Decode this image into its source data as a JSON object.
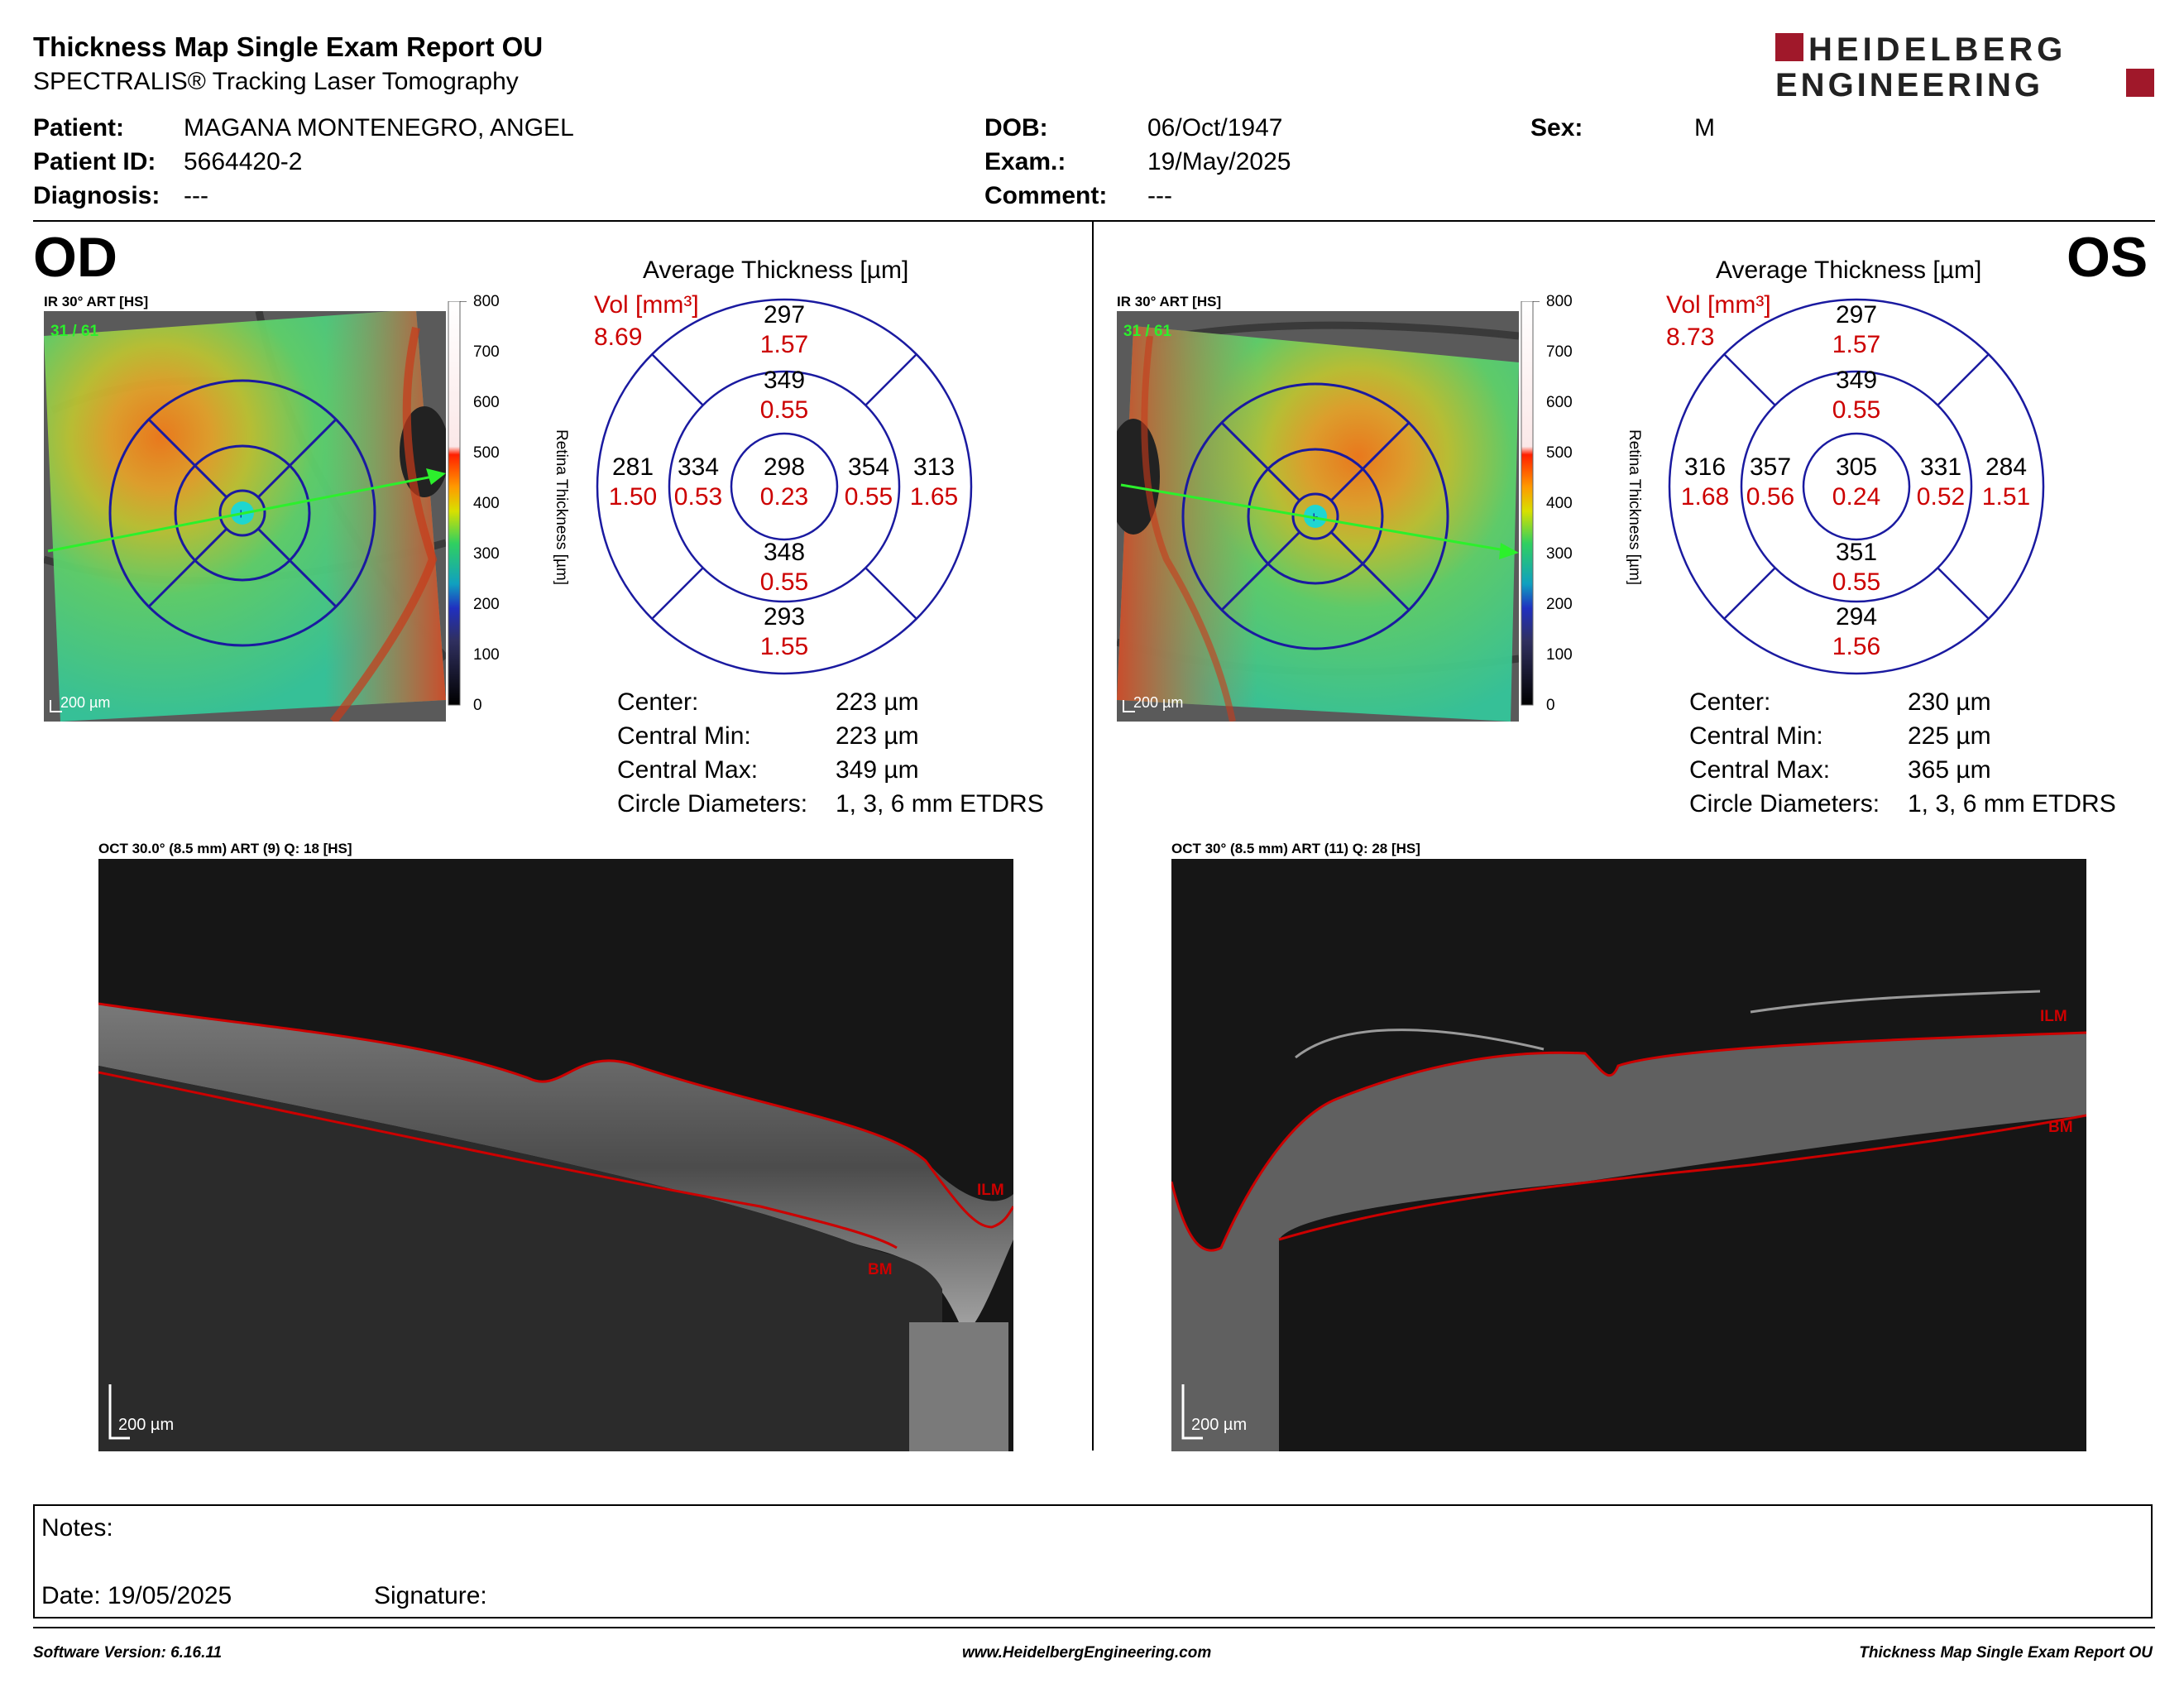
{
  "header": {
    "title": "Thickness Map Single Exam Report OU",
    "subtitle": "SPECTRALIS® Tracking Laser Tomography",
    "logo_line1": "HEIDELBERG",
    "logo_line2": "ENGINEERING"
  },
  "patient": {
    "patient_label": "Patient:",
    "patient_value": "MAGANA MONTENEGRO, ANGEL",
    "id_label": "Patient ID:",
    "id_value": "5664420-2",
    "diagnosis_label": "Diagnosis:",
    "diagnosis_value": "---",
    "dob_label": "DOB:",
    "dob_value": "06/Oct/1947",
    "exam_label": "Exam.:",
    "exam_value": "19/May/2025",
    "comment_label": "Comment:",
    "comment_value": "---",
    "sex_label": "Sex:",
    "sex_value": "M"
  },
  "colorbar": {
    "ticks": [
      "800",
      "700",
      "600",
      "500",
      "400",
      "300",
      "200",
      "100",
      "0"
    ],
    "title": "Retina Thickness [µm]"
  },
  "od": {
    "eye": "OD",
    "image_label": "IR 30° ART [HS]",
    "frame_counter": "31 / 61",
    "scale": "200 µm",
    "avg_title": "Average Thickness [µm]",
    "vol_label": "Vol [mm³]",
    "vol_value": "8.69",
    "sectors": {
      "sup_outer": {
        "thk": "297",
        "vol": "1.57"
      },
      "sup_inner": {
        "thk": "349",
        "vol": "0.55"
      },
      "temp_outer": {
        "thk": "281",
        "vol": "1.50"
      },
      "temp_inner": {
        "thk": "334",
        "vol": "0.53"
      },
      "center": {
        "thk": "298",
        "vol": "0.23"
      },
      "nasal_inner": {
        "thk": "354",
        "vol": "0.55"
      },
      "nasal_outer": {
        "thk": "313",
        "vol": "1.65"
      },
      "inf_inner": {
        "thk": "348",
        "vol": "0.55"
      },
      "inf_outer": {
        "thk": "293",
        "vol": "1.55"
      }
    },
    "stats": {
      "center_label": "Center:",
      "center_value": "223 µm",
      "min_label": "Central Min:",
      "min_value": "223 µm",
      "max_label": "Central Max:",
      "max_value": "349 µm",
      "diam_label": "Circle Diameters:",
      "diam_value": "1, 3, 6 mm ETDRS"
    },
    "oct_label": "OCT 30.0° (8.5 mm) ART (9) Q: 18 [HS]",
    "oct_scale": "200 µm",
    "ilm": "ILM",
    "bm": "BM"
  },
  "os": {
    "eye": "OS",
    "image_label": "IR 30° ART [HS]",
    "frame_counter": "31 / 61",
    "scale": "200 µm",
    "avg_title": "Average Thickness [µm]",
    "vol_label": "Vol [mm³]",
    "vol_value": "8.73",
    "sectors": {
      "sup_outer": {
        "thk": "297",
        "vol": "1.57"
      },
      "sup_inner": {
        "thk": "349",
        "vol": "0.55"
      },
      "temp_outer": {
        "thk": "316",
        "vol": "1.68"
      },
      "temp_inner": {
        "thk": "357",
        "vol": "0.56"
      },
      "center": {
        "thk": "305",
        "vol": "0.24"
      },
      "nasal_inner": {
        "thk": "331",
        "vol": "0.52"
      },
      "nasal_outer": {
        "thk": "284",
        "vol": "1.51"
      },
      "inf_inner": {
        "thk": "351",
        "vol": "0.55"
      },
      "inf_outer": {
        "thk": "294",
        "vol": "1.56"
      }
    },
    "stats": {
      "center_label": "Center:",
      "center_value": "230 µm",
      "min_label": "Central Min:",
      "min_value": "225 µm",
      "max_label": "Central Max:",
      "max_value": "365 µm",
      "diam_label": "Circle Diameters:",
      "diam_value": "1, 3, 6 mm ETDRS"
    },
    "oct_label": "OCT 30° (8.5 mm) ART (11) Q: 28 [HS]",
    "oct_scale": "200 µm",
    "ilm": "ILM",
    "bm": "BM"
  },
  "notes": {
    "notes_label": "Notes:",
    "date_label": "Date: 19/05/2025",
    "signature_label": "Signature:"
  },
  "footer": {
    "software": "Software Version: 6.16.11",
    "website": "www.HeidelbergEngineering.com",
    "report": "Thickness Map Single Exam Report OU"
  },
  "colors": {
    "accent_red": "#cc0000",
    "grid_blue": "#1a1aa0",
    "logo_red": "#a0182a"
  }
}
